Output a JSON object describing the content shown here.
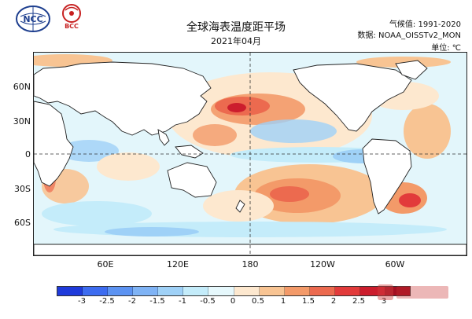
{
  "header": {
    "title": "全球海表温度距平场",
    "subtitle": "2021年04月",
    "baseline_label": "气候值: 1991-2020",
    "data_label": "数据: NOAA_OISSTv2_MON",
    "unit_label": "单位: ℃"
  },
  "logos": {
    "left_logo_text": "NCC",
    "right_logo_text": "BCC"
  },
  "map": {
    "type": "global sea surface temperature anomaly map",
    "lat_ticks": [
      "60N",
      "30N",
      "0",
      "30S",
      "60S"
    ],
    "lon_ticks": [
      "60E",
      "120E",
      "180",
      "120W",
      "60W"
    ],
    "dashed_reference_lines": [
      "equator",
      "dateline"
    ]
  },
  "colorbar": {
    "ticks": [
      "-3",
      "-2.5",
      "-2",
      "-1.5",
      "-1",
      "-0.5",
      "0",
      "0.5",
      "1",
      "1.5",
      "2",
      "2.5",
      "3"
    ],
    "colors": [
      "#1f3bdb",
      "#3d6cf0",
      "#5c93f2",
      "#7fb3f5",
      "#9fd1f7",
      "#c4ecfa",
      "#e6f8fc",
      "#fde8cf",
      "#f8c493",
      "#f39a69",
      "#ec6a4f",
      "#e23b3b",
      "#cc1d2d",
      "#a40f22"
    ]
  },
  "chart_data": {
    "type": "heatmap",
    "title": "全球海表温度距平场",
    "subtitle": "2021年04月",
    "xlabel": "",
    "ylabel": "",
    "x_ticks": [
      "60E",
      "120E",
      "180",
      "120W",
      "60W"
    ],
    "y_ticks": [
      "60N",
      "30N",
      "0",
      "30S",
      "60S"
    ],
    "unit": "℃",
    "colorbar_range": [
      -3,
      3
    ],
    "colorbar_step": 0.5,
    "notable_regions": [
      {
        "region": "northwest Pacific east of Japan",
        "anomaly_range": "1.5 to 2"
      },
      {
        "region": "south central Pacific",
        "anomaly_range": "1 to 2"
      },
      {
        "region": "southwest Atlantic off South America",
        "anomaly_range": "1.5 to 2"
      },
      {
        "region": "equatorial eastern Pacific",
        "anomaly_range": "-0.5 to -1"
      }
    ]
  }
}
